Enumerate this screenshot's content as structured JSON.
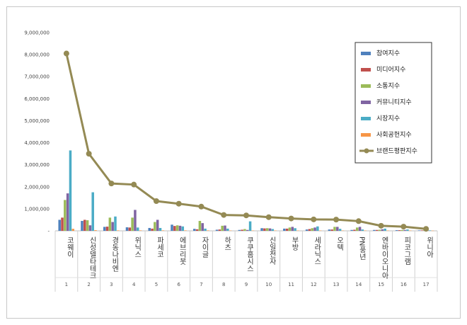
{
  "chart_data": {
    "type": "bar",
    "title": "",
    "xlabel": "",
    "ylabel": "",
    "ylim": [
      0,
      9000000
    ],
    "yticks": [
      "-",
      "1,000,000",
      "2,000,000",
      "3,000,000",
      "4,000,000",
      "5,000,000",
      "6,000,000",
      "7,000,000",
      "8,000,000",
      "9,000,000"
    ],
    "grid": false,
    "legend_position": "top-right",
    "categories": [
      "코웨이",
      "신성델타테크",
      "경동나비엔",
      "위닉스",
      "파세코",
      "에브리봇",
      "자이글",
      "하츠",
      "쿠쿠홈시스",
      "신일전자",
      "부방",
      "세라닉스",
      "오텍",
      "PN풍년",
      "엔바이오니아",
      "피코그램",
      "위니아"
    ],
    "ranks": [
      "1",
      "2",
      "3",
      "4",
      "5",
      "6",
      "7",
      "8",
      "9",
      "10",
      "11",
      "12",
      "13",
      "14",
      "15",
      "16",
      "17"
    ],
    "series": [
      {
        "name": "참여지수",
        "color": "#4f81bd",
        "kind": "bar",
        "values": [
          500000,
          450000,
          180000,
          160000,
          130000,
          280000,
          90000,
          50000,
          40000,
          120000,
          100000,
          60000,
          60000,
          40000,
          40000,
          30000,
          20000
        ]
      },
      {
        "name": "미디어지수",
        "color": "#c0504d",
        "kind": "bar",
        "values": [
          600000,
          500000,
          190000,
          150000,
          100000,
          220000,
          70000,
          60000,
          50000,
          110000,
          100000,
          80000,
          60000,
          50000,
          40000,
          30000,
          20000
        ]
      },
      {
        "name": "소통지수",
        "color": "#9bbb59",
        "kind": "bar",
        "values": [
          1400000,
          480000,
          600000,
          600000,
          400000,
          250000,
          450000,
          230000,
          80000,
          120000,
          150000,
          120000,
          180000,
          150000,
          50000,
          40000,
          30000
        ]
      },
      {
        "name": "커뮤니티지수",
        "color": "#8064a2",
        "kind": "bar",
        "values": [
          1700000,
          250000,
          400000,
          950000,
          500000,
          230000,
          350000,
          240000,
          40000,
          110000,
          180000,
          150000,
          180000,
          180000,
          70000,
          40000,
          20000
        ]
      },
      {
        "name": "시장지수",
        "color": "#4bacc6",
        "kind": "bar",
        "values": [
          3650000,
          1750000,
          650000,
          150000,
          130000,
          200000,
          100000,
          100000,
          430000,
          80000,
          120000,
          200000,
          90000,
          60000,
          100000,
          60000,
          20000
        ]
      },
      {
        "name": "사회공헌지수",
        "color": "#f79646",
        "kind": "bar",
        "values": [
          90000,
          30000,
          20000,
          20000,
          20000,
          20000,
          20000,
          15000,
          15000,
          15000,
          15000,
          15000,
          15000,
          15000,
          15000,
          15000,
          10000
        ]
      },
      {
        "name": "브랜드평판지수",
        "color": "#948a54",
        "kind": "line",
        "values": [
          8050000,
          3500000,
          2150000,
          2100000,
          1350000,
          1230000,
          1100000,
          720000,
          700000,
          620000,
          560000,
          520000,
          510000,
          440000,
          230000,
          190000,
          90000
        ]
      }
    ]
  }
}
